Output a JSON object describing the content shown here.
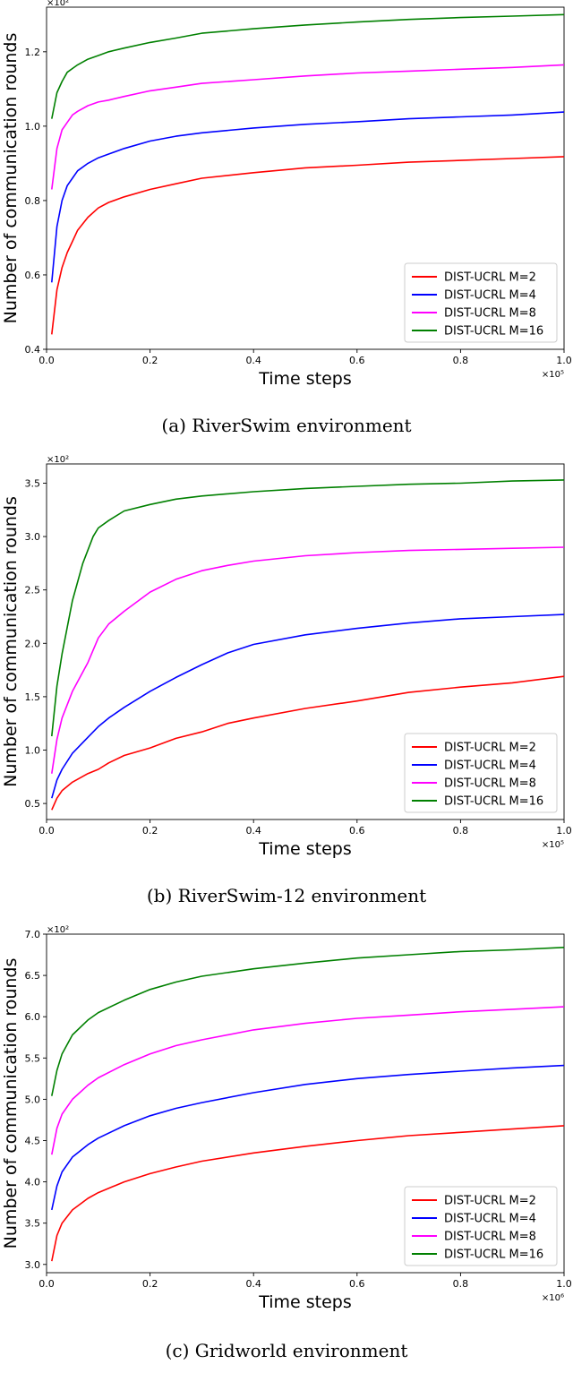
{
  "legend_labels": [
    "DIST-UCRL M=2",
    "DIST-UCRL M=4",
    "DIST-UCRL M=8",
    "DIST-UCRL M=16"
  ],
  "series_colors": [
    "#ff0000",
    "#0000ff",
    "#ff00ff",
    "#008000"
  ],
  "chart_data": [
    {
      "type": "line",
      "caption": "(a)  RiverSwim environment",
      "xlabel": "Time steps",
      "ylabel": "Number of communication rounds",
      "x_multiplier": "×10⁵",
      "y_multiplier": "×10²",
      "xlim": [
        0,
        1.0
      ],
      "ylim": [
        0.4,
        1.32
      ],
      "xticks": [
        "0.0",
        "0.2",
        "0.4",
        "0.6",
        "0.8",
        "1.0"
      ],
      "yticks": [
        "0.4",
        "0.6",
        "0.8",
        "1.0",
        "1.2"
      ],
      "legend_position": "lower-right",
      "grid": false,
      "series": [
        {
          "name": "DIST-UCRL M=2",
          "points": [
            [
              0.01,
              0.44
            ],
            [
              0.02,
              0.56
            ],
            [
              0.03,
              0.62
            ],
            [
              0.04,
              0.66
            ],
            [
              0.05,
              0.69
            ],
            [
              0.06,
              0.72
            ],
            [
              0.08,
              0.755
            ],
            [
              0.1,
              0.78
            ],
            [
              0.12,
              0.795
            ],
            [
              0.15,
              0.81
            ],
            [
              0.2,
              0.83
            ],
            [
              0.25,
              0.845
            ],
            [
              0.3,
              0.86
            ],
            [
              0.4,
              0.875
            ],
            [
              0.5,
              0.888
            ],
            [
              0.6,
              0.895
            ],
            [
              0.7,
              0.903
            ],
            [
              0.8,
              0.908
            ],
            [
              0.9,
              0.913
            ],
            [
              1.0,
              0.918
            ]
          ]
        },
        {
          "name": "DIST-UCRL M=4",
          "points": [
            [
              0.01,
              0.58
            ],
            [
              0.02,
              0.73
            ],
            [
              0.03,
              0.8
            ],
            [
              0.04,
              0.84
            ],
            [
              0.05,
              0.86
            ],
            [
              0.06,
              0.88
            ],
            [
              0.08,
              0.9
            ],
            [
              0.1,
              0.915
            ],
            [
              0.12,
              0.925
            ],
            [
              0.15,
              0.94
            ],
            [
              0.2,
              0.96
            ],
            [
              0.25,
              0.973
            ],
            [
              0.3,
              0.982
            ],
            [
              0.4,
              0.995
            ],
            [
              0.5,
              1.005
            ],
            [
              0.6,
              1.012
            ],
            [
              0.7,
              1.02
            ],
            [
              0.8,
              1.025
            ],
            [
              0.9,
              1.03
            ],
            [
              1.0,
              1.038
            ]
          ]
        },
        {
          "name": "DIST-UCRL M=8",
          "points": [
            [
              0.01,
              0.83
            ],
            [
              0.02,
              0.94
            ],
            [
              0.03,
              0.99
            ],
            [
              0.04,
              1.01
            ],
            [
              0.05,
              1.03
            ],
            [
              0.06,
              1.04
            ],
            [
              0.08,
              1.055
            ],
            [
              0.1,
              1.065
            ],
            [
              0.12,
              1.07
            ],
            [
              0.15,
              1.08
            ],
            [
              0.2,
              1.095
            ],
            [
              0.25,
              1.105
            ],
            [
              0.3,
              1.115
            ],
            [
              0.4,
              1.125
            ],
            [
              0.5,
              1.135
            ],
            [
              0.6,
              1.143
            ],
            [
              0.7,
              1.148
            ],
            [
              0.8,
              1.153
            ],
            [
              0.9,
              1.158
            ],
            [
              1.0,
              1.165
            ]
          ]
        },
        {
          "name": "DIST-UCRL M=16",
          "points": [
            [
              0.01,
              1.02
            ],
            [
              0.02,
              1.09
            ],
            [
              0.03,
              1.12
            ],
            [
              0.04,
              1.145
            ],
            [
              0.05,
              1.155
            ],
            [
              0.06,
              1.165
            ],
            [
              0.08,
              1.18
            ],
            [
              0.1,
              1.19
            ],
            [
              0.12,
              1.2
            ],
            [
              0.15,
              1.21
            ],
            [
              0.2,
              1.225
            ],
            [
              0.25,
              1.237
            ],
            [
              0.3,
              1.25
            ],
            [
              0.4,
              1.262
            ],
            [
              0.5,
              1.272
            ],
            [
              0.6,
              1.28
            ],
            [
              0.7,
              1.287
            ],
            [
              0.8,
              1.292
            ],
            [
              0.9,
              1.296
            ],
            [
              1.0,
              1.3
            ]
          ]
        }
      ]
    },
    {
      "type": "line",
      "caption": "(b)  RiverSwim-12 environment",
      "xlabel": "Time steps",
      "ylabel": "Number of communication rounds",
      "x_multiplier": "×10⁵",
      "y_multiplier": "×10²",
      "xlim": [
        0,
        1.0
      ],
      "ylim": [
        0.35,
        3.68
      ],
      "xticks": [
        "0.0",
        "0.2",
        "0.4",
        "0.6",
        "0.8",
        "1.0"
      ],
      "yticks": [
        "0.5",
        "1.0",
        "1.5",
        "2.0",
        "2.5",
        "3.0",
        "3.5"
      ],
      "legend_position": "lower-right",
      "grid": false,
      "series": [
        {
          "name": "DIST-UCRL M=2",
          "points": [
            [
              0.01,
              0.44
            ],
            [
              0.02,
              0.55
            ],
            [
              0.03,
              0.62
            ],
            [
              0.05,
              0.7
            ],
            [
              0.08,
              0.78
            ],
            [
              0.1,
              0.82
            ],
            [
              0.12,
              0.88
            ],
            [
              0.15,
              0.95
            ],
            [
              0.2,
              1.02
            ],
            [
              0.25,
              1.11
            ],
            [
              0.3,
              1.17
            ],
            [
              0.35,
              1.25
            ],
            [
              0.4,
              1.3
            ],
            [
              0.5,
              1.39
            ],
            [
              0.6,
              1.46
            ],
            [
              0.7,
              1.54
            ],
            [
              0.8,
              1.59
            ],
            [
              0.9,
              1.63
            ],
            [
              1.0,
              1.69
            ]
          ]
        },
        {
          "name": "DIST-UCRL M=4",
          "points": [
            [
              0.01,
              0.55
            ],
            [
              0.02,
              0.72
            ],
            [
              0.03,
              0.82
            ],
            [
              0.05,
              0.97
            ],
            [
              0.08,
              1.12
            ],
            [
              0.1,
              1.22
            ],
            [
              0.12,
              1.3
            ],
            [
              0.15,
              1.4
            ],
            [
              0.2,
              1.55
            ],
            [
              0.25,
              1.68
            ],
            [
              0.3,
              1.8
            ],
            [
              0.35,
              1.91
            ],
            [
              0.4,
              1.99
            ],
            [
              0.5,
              2.08
            ],
            [
              0.6,
              2.14
            ],
            [
              0.7,
              2.19
            ],
            [
              0.8,
              2.23
            ],
            [
              0.9,
              2.25
            ],
            [
              1.0,
              2.27
            ]
          ]
        },
        {
          "name": "DIST-UCRL M=8",
          "points": [
            [
              0.01,
              0.78
            ],
            [
              0.02,
              1.1
            ],
            [
              0.03,
              1.3
            ],
            [
              0.05,
              1.55
            ],
            [
              0.08,
              1.82
            ],
            [
              0.1,
              2.05
            ],
            [
              0.12,
              2.18
            ],
            [
              0.15,
              2.3
            ],
            [
              0.2,
              2.48
            ],
            [
              0.25,
              2.6
            ],
            [
              0.3,
              2.68
            ],
            [
              0.35,
              2.73
            ],
            [
              0.4,
              2.77
            ],
            [
              0.5,
              2.82
            ],
            [
              0.6,
              2.85
            ],
            [
              0.7,
              2.87
            ],
            [
              0.8,
              2.88
            ],
            [
              0.9,
              2.89
            ],
            [
              1.0,
              2.9
            ]
          ]
        },
        {
          "name": "DIST-UCRL M=16",
          "points": [
            [
              0.01,
              1.13
            ],
            [
              0.02,
              1.6
            ],
            [
              0.03,
              1.9
            ],
            [
              0.05,
              2.4
            ],
            [
              0.07,
              2.75
            ],
            [
              0.09,
              3.0
            ],
            [
              0.1,
              3.08
            ],
            [
              0.12,
              3.15
            ],
            [
              0.15,
              3.24
            ],
            [
              0.2,
              3.3
            ],
            [
              0.25,
              3.35
            ],
            [
              0.3,
              3.38
            ],
            [
              0.4,
              3.42
            ],
            [
              0.5,
              3.45
            ],
            [
              0.6,
              3.47
            ],
            [
              0.7,
              3.49
            ],
            [
              0.8,
              3.5
            ],
            [
              0.9,
              3.52
            ],
            [
              1.0,
              3.53
            ]
          ]
        }
      ]
    },
    {
      "type": "line",
      "caption": "(c)  Gridworld environment",
      "xlabel": "Time steps",
      "ylabel": "Number of communication rounds",
      "x_multiplier": "×10⁶",
      "y_multiplier": "×10²",
      "xlim": [
        0,
        1.0
      ],
      "ylim": [
        2.9,
        7.0
      ],
      "xticks": [
        "0.0",
        "0.2",
        "0.4",
        "0.6",
        "0.8",
        "1.0"
      ],
      "yticks": [
        "3.0",
        "3.5",
        "4.0",
        "4.5",
        "5.0",
        "5.5",
        "6.0",
        "6.5",
        "7.0"
      ],
      "legend_position": "lower-right",
      "grid": false,
      "series": [
        {
          "name": "DIST-UCRL M=2",
          "points": [
            [
              0.01,
              3.04
            ],
            [
              0.02,
              3.35
            ],
            [
              0.03,
              3.5
            ],
            [
              0.05,
              3.66
            ],
            [
              0.08,
              3.8
            ],
            [
              0.1,
              3.87
            ],
            [
              0.15,
              4.0
            ],
            [
              0.2,
              4.1
            ],
            [
              0.25,
              4.18
            ],
            [
              0.3,
              4.25
            ],
            [
              0.4,
              4.35
            ],
            [
              0.5,
              4.43
            ],
            [
              0.6,
              4.5
            ],
            [
              0.7,
              4.56
            ],
            [
              0.8,
              4.6
            ],
            [
              0.9,
              4.64
            ],
            [
              1.0,
              4.68
            ]
          ]
        },
        {
          "name": "DIST-UCRL M=4",
          "points": [
            [
              0.01,
              3.66
            ],
            [
              0.02,
              3.95
            ],
            [
              0.03,
              4.12
            ],
            [
              0.05,
              4.3
            ],
            [
              0.08,
              4.45
            ],
            [
              0.1,
              4.53
            ],
            [
              0.15,
              4.68
            ],
            [
              0.2,
              4.8
            ],
            [
              0.25,
              4.89
            ],
            [
              0.3,
              4.96
            ],
            [
              0.4,
              5.08
            ],
            [
              0.5,
              5.18
            ],
            [
              0.6,
              5.25
            ],
            [
              0.7,
              5.3
            ],
            [
              0.8,
              5.34
            ],
            [
              0.9,
              5.38
            ],
            [
              1.0,
              5.41
            ]
          ]
        },
        {
          "name": "DIST-UCRL M=8",
          "points": [
            [
              0.01,
              4.33
            ],
            [
              0.02,
              4.65
            ],
            [
              0.03,
              4.82
            ],
            [
              0.05,
              5.0
            ],
            [
              0.08,
              5.17
            ],
            [
              0.1,
              5.26
            ],
            [
              0.15,
              5.42
            ],
            [
              0.2,
              5.55
            ],
            [
              0.25,
              5.65
            ],
            [
              0.3,
              5.72
            ],
            [
              0.4,
              5.84
            ],
            [
              0.5,
              5.92
            ],
            [
              0.6,
              5.98
            ],
            [
              0.7,
              6.02
            ],
            [
              0.8,
              6.06
            ],
            [
              0.9,
              6.09
            ],
            [
              1.0,
              6.12
            ]
          ]
        },
        {
          "name": "DIST-UCRL M=16",
          "points": [
            [
              0.01,
              5.04
            ],
            [
              0.02,
              5.35
            ],
            [
              0.03,
              5.55
            ],
            [
              0.05,
              5.78
            ],
            [
              0.08,
              5.96
            ],
            [
              0.1,
              6.05
            ],
            [
              0.15,
              6.2
            ],
            [
              0.2,
              6.33
            ],
            [
              0.25,
              6.42
            ],
            [
              0.3,
              6.49
            ],
            [
              0.4,
              6.58
            ],
            [
              0.5,
              6.65
            ],
            [
              0.6,
              6.71
            ],
            [
              0.7,
              6.75
            ],
            [
              0.8,
              6.79
            ],
            [
              0.9,
              6.81
            ],
            [
              1.0,
              6.84
            ]
          ]
        }
      ]
    }
  ]
}
